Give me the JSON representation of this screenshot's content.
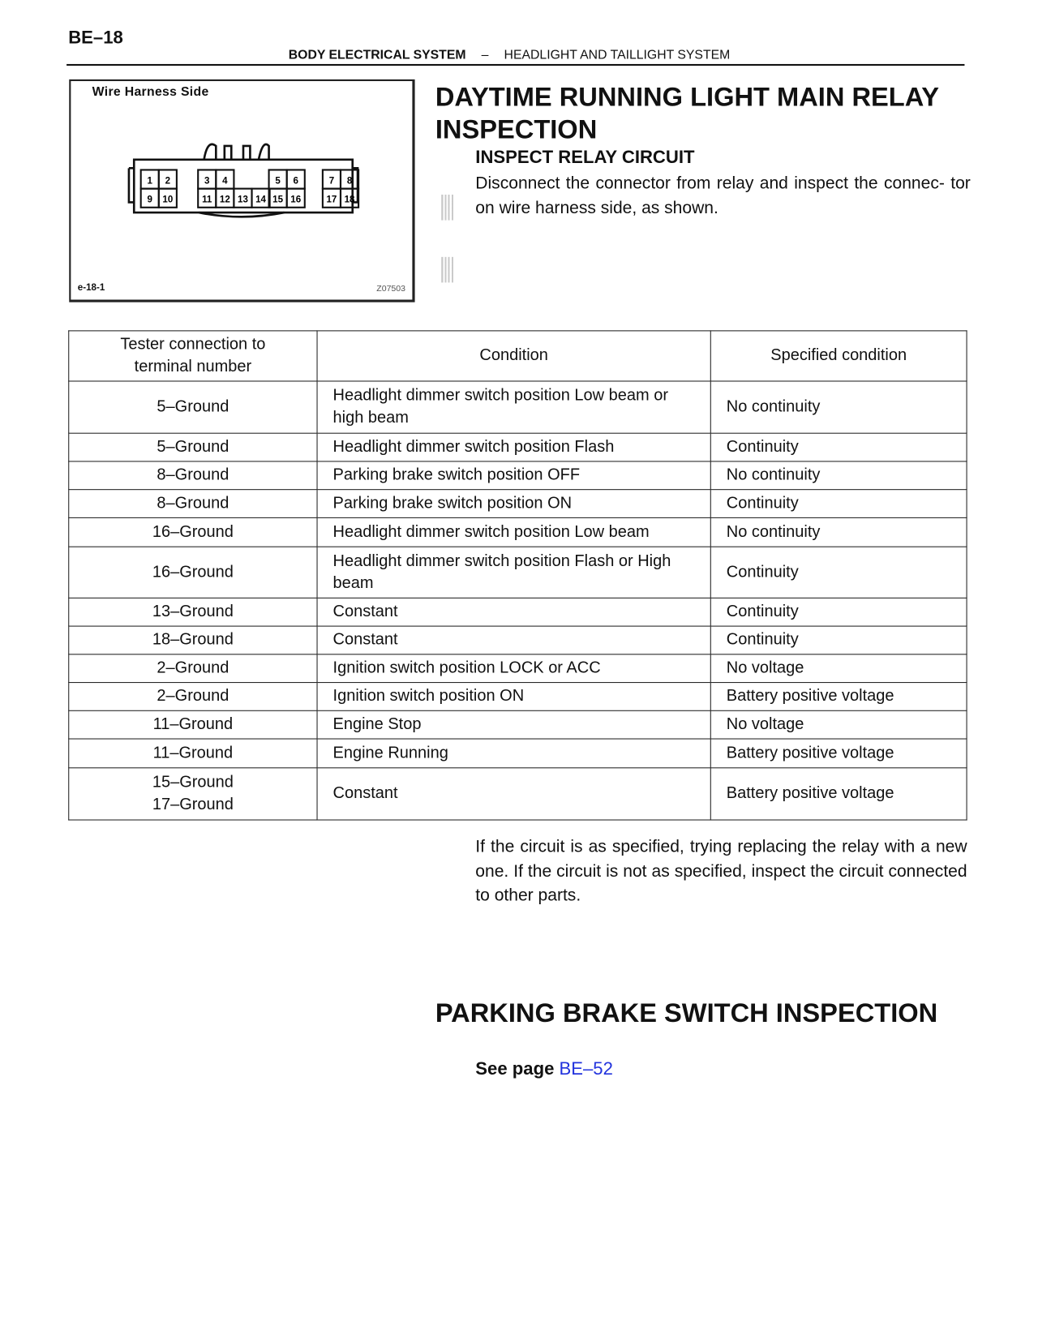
{
  "page_number": "BE–18",
  "header": {
    "section": "BODY ELECTRICAL SYSTEM",
    "separator": "–",
    "subsection": "HEADLIGHT AND TAILLIGHT SYSTEM"
  },
  "figure": {
    "title": "Wire Harness Side",
    "code": "e-18-1",
    "id": "Z07503",
    "terminals_top": [
      "1",
      "2",
      "3",
      "4",
      "5",
      "6",
      "7",
      "8"
    ],
    "terminals_bottom": [
      "9",
      "10",
      "11",
      "12",
      "13",
      "14",
      "15",
      "16",
      "17",
      "18"
    ]
  },
  "section1": {
    "title": "DAYTIME RUNNING LIGHT MAIN RELAY INSPECTION",
    "subtitle": "INSPECT RELAY CIRCUIT",
    "text": "Disconnect the connector from relay and inspect the connec- tor on wire harness side, as shown."
  },
  "table": {
    "headers": [
      "Tester connection to terminal number",
      "Condition",
      "Specified condition"
    ],
    "rows": [
      [
        "5–Ground",
        "Headlight dimmer switch position Low beam or high beam",
        "No continuity"
      ],
      [
        "5–Ground",
        "Headlight dimmer switch position Flash",
        "Continuity"
      ],
      [
        "8–Ground",
        "Parking brake switch position OFF",
        "No continuity"
      ],
      [
        "8–Ground",
        "Parking brake switch position ON",
        "Continuity"
      ],
      [
        "16–Ground",
        "Headlight dimmer switch position Low beam",
        "No continuity"
      ],
      [
        "16–Ground",
        "Headlight dimmer switch position Flash or High beam",
        "Continuity"
      ],
      [
        "13–Ground",
        "Constant",
        "Continuity"
      ],
      [
        "18–Ground",
        "Constant",
        "Continuity"
      ],
      [
        "2–Ground",
        "Ignition switch position LOCK or ACC",
        "No voltage"
      ],
      [
        "2–Ground",
        "Ignition switch position ON",
        "Battery positive voltage"
      ],
      [
        "11–Ground",
        "Engine Stop",
        "No voltage"
      ],
      [
        "11–Ground",
        "Engine Running",
        "Battery positive voltage"
      ],
      [
        "15–Ground\n17–Ground",
        "Constant",
        "Battery positive voltage"
      ]
    ]
  },
  "after_text": "If the circuit is as specified, trying replacing the relay with a new one. If the circuit is not as specified, inspect the circuit connected to other parts.",
  "section2": {
    "title": "PARKING BRAKE SWITCH INSPECTION",
    "see_label": "See page",
    "link": "BE–52"
  },
  "colors": {
    "link": "#2233dd"
  }
}
